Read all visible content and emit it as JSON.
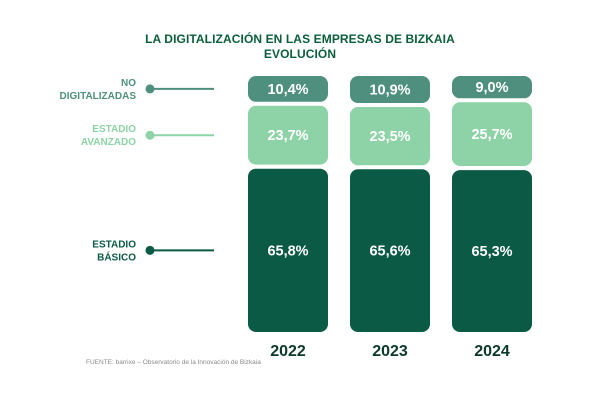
{
  "title": [
    "LA DIGITALIZACIÓN EN LAS EMPRESAS DE BIZKAIA",
    "EVOLUCIÓN"
  ],
  "source": "FUENTE: barrixe – Observatorio de la Innovación de Bizkaia",
  "colors": {
    "no_digitalizadas": "#4f8f7e",
    "estadio_avanzado": "#8ed3a7",
    "estadio_basico": "#0b5a45",
    "title": "#0a5e3b",
    "year": "#0b3a2a"
  },
  "chart_data": {
    "type": "bar",
    "stacked": true,
    "categories": [
      "2022",
      "2023",
      "2024"
    ],
    "series": [
      {
        "name": "ESTADIO BÁSICO",
        "label_lines": [
          "ESTADIO",
          "BÁSICO"
        ],
        "values": [
          65.8,
          65.6,
          65.3
        ],
        "labels": [
          "65,8%",
          "65,6%",
          "65,3%"
        ],
        "color": "#0b5a45"
      },
      {
        "name": "ESTADIO AVANZADO",
        "label_lines": [
          "ESTADIO",
          "AVANZADO"
        ],
        "values": [
          23.7,
          23.5,
          25.7
        ],
        "labels": [
          "23,7%",
          "23,5%",
          "25,7%"
        ],
        "color": "#8ed3a7"
      },
      {
        "name": "NO DIGITALIZADAS",
        "label_lines": [
          "NO",
          "DIGITALIZADAS"
        ],
        "values": [
          10.4,
          10.9,
          9.0
        ],
        "labels": [
          "10,4%",
          "10,9%",
          "9,0%"
        ],
        "color": "#4f8f7e"
      }
    ],
    "legend": "left"
  }
}
